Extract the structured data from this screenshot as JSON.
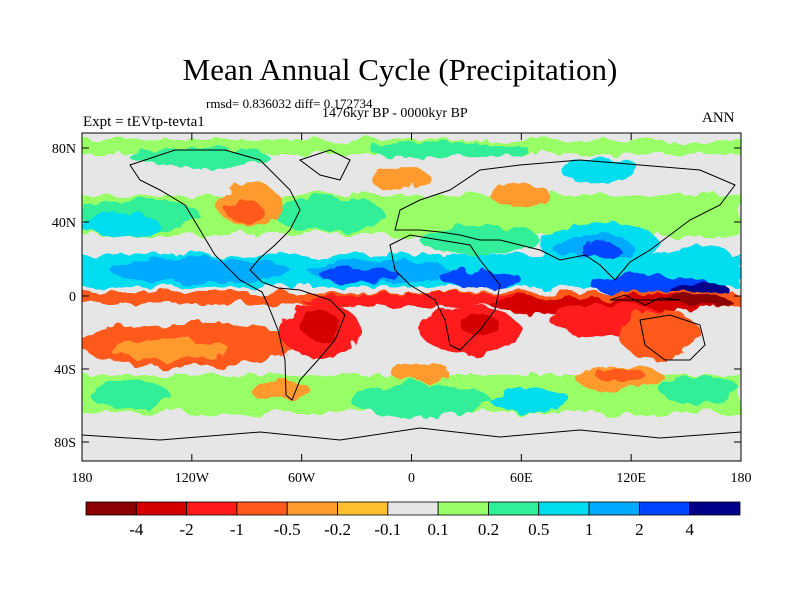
{
  "title": "Mean Annual Cycle (Precipitation)",
  "stats": "rmsd= 0.836032 diff= 0.172734",
  "period": "1476kyr BP - 0000kyr BP",
  "experiment": "Expt = tEVtp-tevta1",
  "season": "ANN",
  "lat_labels": [
    "80N",
    "40N",
    "0",
    "40S",
    "80S"
  ],
  "lon_labels": [
    "180",
    "120W",
    "60W",
    "0",
    "60E",
    "120E",
    "180"
  ],
  "colorbar": {
    "labels": [
      "-4",
      "-2",
      "-1",
      "-0.5",
      "-0.2",
      "-0.1",
      "0.1",
      "0.2",
      "0.5",
      "1",
      "2",
      "4"
    ],
    "colors": [
      "#8b0000",
      "#d40000",
      "#ff1a1a",
      "#ff5a1e",
      "#ff9a2e",
      "#ffc02e",
      "#e6e6e6",
      "#99ff66",
      "#33ee99",
      "#00ddee",
      "#00aaff",
      "#0044ff",
      "#00008b"
    ]
  }
}
